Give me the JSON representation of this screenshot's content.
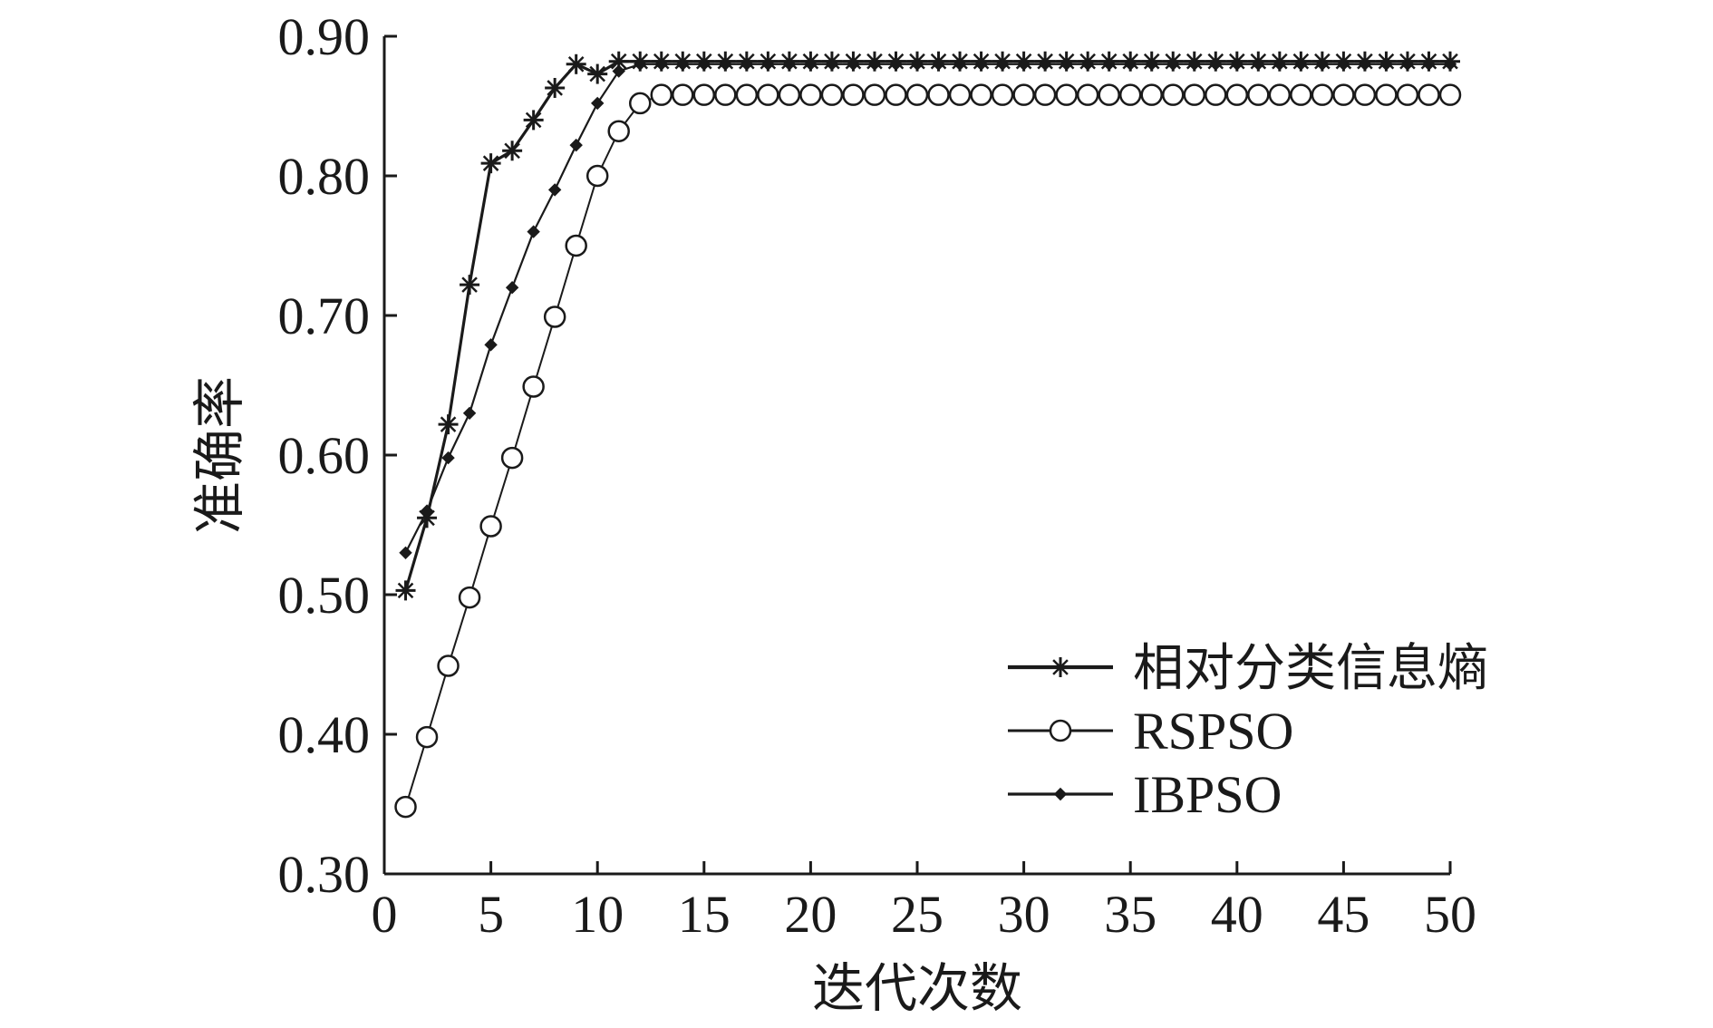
{
  "chart_data": {
    "type": "line",
    "title": "",
    "xlabel": "迭代次数",
    "ylabel": "准确率",
    "xlim": [
      0,
      50
    ],
    "ylim": [
      0.3,
      0.9
    ],
    "xticks": [
      "0",
      "5",
      "10",
      "15",
      "20",
      "25",
      "30",
      "35",
      "40",
      "45",
      "50"
    ],
    "yticks": [
      "0.30",
      "0.40",
      "0.50",
      "0.60",
      "0.70",
      "0.80",
      "0.90"
    ],
    "grid": false,
    "legend_position": "lower-right",
    "series": [
      {
        "name": "相对分类信息熵",
        "marker": "star",
        "color": "#1a1a1a",
        "x": [
          1,
          2,
          3,
          4,
          5,
          6,
          7,
          8,
          9,
          10,
          11,
          12,
          13,
          14,
          15,
          16,
          17,
          18,
          19,
          20,
          21,
          22,
          23,
          24,
          25,
          26,
          27,
          28,
          29,
          30,
          31,
          32,
          33,
          34,
          35,
          36,
          37,
          38,
          39,
          40,
          41,
          42,
          43,
          44,
          45,
          46,
          47,
          48,
          49,
          50
        ],
        "y": [
          0.503,
          0.555,
          0.622,
          0.722,
          0.809,
          0.818,
          0.84,
          0.863,
          0.88,
          0.873,
          0.882,
          0.882,
          0.882,
          0.882,
          0.882,
          0.882,
          0.882,
          0.882,
          0.882,
          0.882,
          0.882,
          0.882,
          0.882,
          0.882,
          0.882,
          0.882,
          0.882,
          0.882,
          0.882,
          0.882,
          0.882,
          0.882,
          0.882,
          0.882,
          0.882,
          0.882,
          0.882,
          0.882,
          0.882,
          0.882,
          0.882,
          0.882,
          0.882,
          0.882,
          0.882,
          0.882,
          0.882,
          0.882,
          0.882,
          0.882
        ]
      },
      {
        "name": "RSPSO",
        "marker": "circle",
        "color": "#1a1a1a",
        "x": [
          1,
          2,
          3,
          4,
          5,
          6,
          7,
          8,
          9,
          10,
          11,
          12,
          13,
          14,
          15,
          16,
          17,
          18,
          19,
          20,
          21,
          22,
          23,
          24,
          25,
          26,
          27,
          28,
          29,
          30,
          31,
          32,
          33,
          34,
          35,
          36,
          37,
          38,
          39,
          40,
          41,
          42,
          43,
          44,
          45,
          46,
          47,
          48,
          49,
          50
        ],
        "y": [
          0.348,
          0.398,
          0.449,
          0.498,
          0.549,
          0.598,
          0.649,
          0.699,
          0.75,
          0.8,
          0.832,
          0.852,
          0.858,
          0.858,
          0.858,
          0.858,
          0.858,
          0.858,
          0.858,
          0.858,
          0.858,
          0.858,
          0.858,
          0.858,
          0.858,
          0.858,
          0.858,
          0.858,
          0.858,
          0.858,
          0.858,
          0.858,
          0.858,
          0.858,
          0.858,
          0.858,
          0.858,
          0.858,
          0.858,
          0.858,
          0.858,
          0.858,
          0.858,
          0.858,
          0.858,
          0.858,
          0.858,
          0.858,
          0.858,
          0.858
        ]
      },
      {
        "name": "IBPSO",
        "marker": "diamond",
        "color": "#1a1a1a",
        "x": [
          1,
          2,
          3,
          4,
          5,
          6,
          7,
          8,
          9,
          10,
          11,
          12,
          13,
          14,
          15,
          16,
          17,
          18,
          19,
          20,
          21,
          22,
          23,
          24,
          25,
          26,
          27,
          28,
          29,
          30,
          31,
          32,
          33,
          34,
          35,
          36,
          37,
          38,
          39,
          40,
          41,
          42,
          43,
          44,
          45,
          46,
          47,
          48,
          49,
          50
        ],
        "y": [
          0.53,
          0.56,
          0.598,
          0.63,
          0.679,
          0.72,
          0.76,
          0.79,
          0.822,
          0.852,
          0.875,
          0.88,
          0.88,
          0.88,
          0.88,
          0.88,
          0.88,
          0.88,
          0.88,
          0.88,
          0.88,
          0.88,
          0.88,
          0.88,
          0.88,
          0.88,
          0.88,
          0.88,
          0.88,
          0.88,
          0.88,
          0.88,
          0.88,
          0.88,
          0.88,
          0.88,
          0.88,
          0.88,
          0.88,
          0.88,
          0.88,
          0.88,
          0.88,
          0.88,
          0.88,
          0.88,
          0.88,
          0.88,
          0.88,
          0.88
        ]
      }
    ]
  }
}
